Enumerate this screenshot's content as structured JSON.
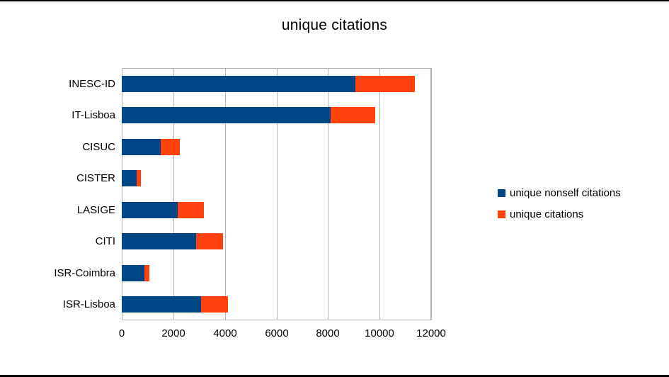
{
  "page": {
    "background": "#ffffff",
    "edge_line_color": "#000000"
  },
  "chart_data": {
    "type": "bar",
    "orientation": "horizontal",
    "stacked": true,
    "title": "unique citations",
    "categories": [
      "INESC-ID",
      "IT-Lisboa",
      "CISUC",
      "CISTER",
      "LASIGE",
      "CITI",
      "ISR-Coimbra",
      "ISR-Lisboa"
    ],
    "series": [
      {
        "name": "unique nonself citations",
        "color": "#004586",
        "values": [
          9070,
          8100,
          1500,
          590,
          2180,
          2870,
          880,
          3070
        ]
      },
      {
        "name": "unique citations",
        "color": "#FF420E",
        "values": [
          2300,
          1740,
          750,
          150,
          1000,
          1050,
          200,
          1050
        ]
      }
    ],
    "stack_totals": [
      11370,
      9840,
      2250,
      740,
      3180,
      3920,
      1080,
      4120
    ],
    "xlabel": "",
    "ylabel": "",
    "xlim": [
      0,
      12000
    ],
    "x_ticks": [
      0,
      2000,
      4000,
      6000,
      8000,
      10000,
      12000
    ],
    "grid": "vertical",
    "gridline_color": "#b3b3b3",
    "plot_border_color": "#b3b3b3",
    "text_color": "#000000",
    "legend_position": "right"
  }
}
